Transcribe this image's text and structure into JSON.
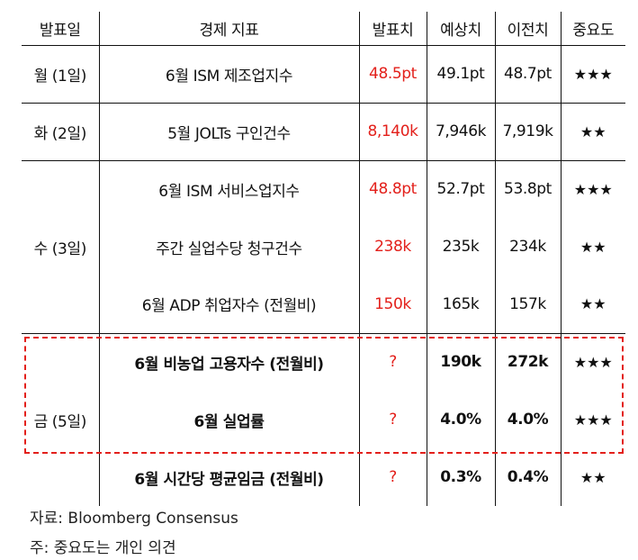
{
  "table": {
    "headers": [
      "발표일",
      "경제 지표",
      "발표치",
      "예상치",
      "이전치",
      "중요도"
    ],
    "groups": [
      {
        "date": "월 (1일)",
        "rows": [
          {
            "indicator": "6월 ISM 제조업지수",
            "actual": "48.5pt",
            "forecast": "49.1pt",
            "previous": "48.7pt",
            "importance": "★★★"
          }
        ]
      },
      {
        "date": "화 (2일)",
        "rows": [
          {
            "indicator": "5월 JOLTs 구인건수",
            "actual": "8,140k",
            "forecast": "7,946k",
            "previous": "7,919k",
            "importance": "★★"
          }
        ]
      },
      {
        "date": "수 (3일)",
        "rows": [
          {
            "indicator": "6월 ISM 서비스업지수",
            "actual": "48.8pt",
            "forecast": "52.7pt",
            "previous": "53.8pt",
            "importance": "★★★"
          },
          {
            "indicator": "주간 실업수당 청구건수",
            "actual": "238k",
            "forecast": "235k",
            "previous": "234k",
            "importance": "★★"
          },
          {
            "indicator": "6월 ADP 취업자수 (전월비)",
            "actual": "150k",
            "forecast": "165k",
            "previous": "157k",
            "importance": "★★"
          }
        ]
      },
      {
        "date": "금 (5일)",
        "rows": [
          {
            "indicator": "6월 비농업 고용자수 (전월비)",
            "actual": "?",
            "forecast": "190k",
            "previous": "272k",
            "importance": "★★★"
          },
          {
            "indicator": "6월 실업률",
            "actual": "?",
            "forecast": "4.0%",
            "previous": "4.0%",
            "importance": "★★★"
          },
          {
            "indicator": "6월 시간당 평균임금 (전월비)",
            "actual": "?",
            "forecast": "0.3%",
            "previous": "0.4%",
            "importance": "★★"
          }
        ]
      }
    ]
  },
  "notes": {
    "source": "자료: Bloomberg Consensus",
    "comment": "주: 중요도는 개인 의견"
  },
  "colors": {
    "actual_value": "#e3201b",
    "highlight_border": "#e3201b",
    "text": "#111111"
  }
}
